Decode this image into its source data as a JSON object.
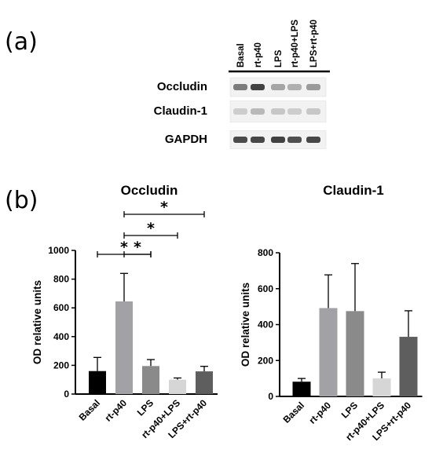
{
  "panels": {
    "a": "(a)",
    "b": "(b)"
  },
  "blot": {
    "lanes": [
      "Basal",
      "rt-p40",
      "LPS",
      "rt-p40+LPS",
      "LPS+rt-p40"
    ],
    "rows": [
      {
        "label": "Occludin",
        "intensity": [
          0.55,
          0.85,
          0.35,
          0.3,
          0.4
        ]
      },
      {
        "label": "Claudin-1",
        "intensity": [
          0.15,
          0.25,
          0.18,
          0.15,
          0.18
        ]
      },
      {
        "label": "GAPDH",
        "intensity": [
          0.8,
          0.82,
          0.85,
          0.78,
          0.82
        ]
      }
    ]
  },
  "chart_data": [
    {
      "type": "bar",
      "title": "Occludin",
      "ylabel": "OD relative units",
      "xlabel": "",
      "categories": [
        "Basal",
        "rt-p40",
        "LPS",
        "rt-p40+LPS",
        "LPS+rt-p40"
      ],
      "values": [
        160,
        645,
        195,
        100,
        158
      ],
      "errors": [
        95,
        195,
        45,
        12,
        35
      ],
      "colors": [
        "#000000",
        "#a2a2a6",
        "#8a8a8a",
        "#d6d6d6",
        "#5e5e5e"
      ],
      "ylim": [
        0,
        1000
      ],
      "yticks": [
        0,
        200,
        400,
        600,
        800,
        1000
      ],
      "significance": [
        {
          "from": 0,
          "to": 2,
          "label": "*"
        },
        {
          "from": 1,
          "to": 2,
          "label": "*"
        },
        {
          "from": 1,
          "to": 3,
          "label": "*"
        },
        {
          "from": 1,
          "to": 4,
          "label": "*"
        }
      ]
    },
    {
      "type": "bar",
      "title": "Claudin-1",
      "ylabel": "OD relative units",
      "xlabel": "",
      "categories": [
        "Basal",
        "rt-p40",
        "LPS",
        "rt-p40+LPS",
        "LPS+rt-p40"
      ],
      "values": [
        82,
        492,
        475,
        100,
        332
      ],
      "errors": [
        18,
        185,
        265,
        35,
        145
      ],
      "colors": [
        "#000000",
        "#a2a2a6",
        "#8a8a8a",
        "#d6d6d6",
        "#5e5e5e"
      ],
      "ylim": [
        0,
        800
      ],
      "yticks": [
        0,
        200,
        400,
        600,
        800
      ],
      "significance": []
    }
  ]
}
